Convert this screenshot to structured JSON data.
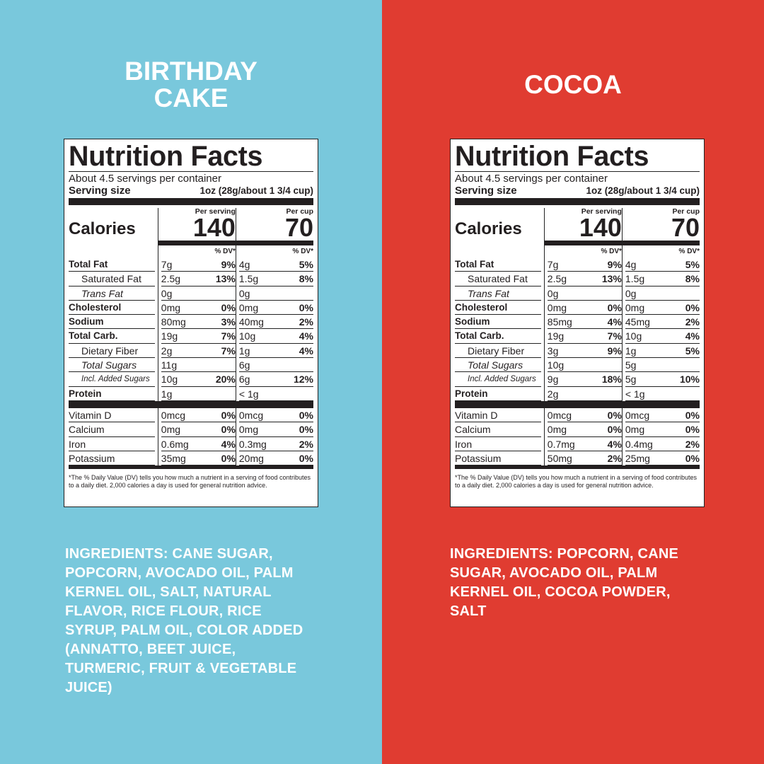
{
  "panels": [
    {
      "title": "BIRTHDAY CAKE",
      "label": {
        "title": "Nutrition Facts",
        "servings": "About 4.5 servings per container",
        "serving_size_label": "Serving size",
        "serving_size": "1oz (28g/about 1 3/4 cup)",
        "calories_label": "Calories",
        "columns": [
          {
            "header": "Per serving",
            "calories": "140"
          },
          {
            "header": "Per cup",
            "calories": "70"
          }
        ],
        "dv_header": "% DV*",
        "nutrients": [
          {
            "name": "Total Fat",
            "style": "bold",
            "cells": [
              [
                "7g",
                "9%"
              ],
              [
                "4g",
                "5%"
              ]
            ]
          },
          {
            "name": "Saturated Fat",
            "style": "indent",
            "cells": [
              [
                "2.5g",
                "13%"
              ],
              [
                "1.5g",
                "8%"
              ]
            ]
          },
          {
            "name": "Trans Fat",
            "style": "indent-italic",
            "cells": [
              [
                "0g"
              ],
              [
                "0g"
              ]
            ]
          },
          {
            "name": "Cholesterol",
            "style": "bold",
            "cells": [
              [
                "0mg",
                "0%"
              ],
              [
                "0mg",
                "0%"
              ]
            ]
          },
          {
            "name": "Sodium",
            "style": "bold",
            "cells": [
              [
                "80mg",
                "3%"
              ],
              [
                "40mg",
                "2%"
              ]
            ]
          },
          {
            "name": "Total Carb.",
            "style": "bold",
            "cells": [
              [
                "19g",
                "7%"
              ],
              [
                "10g",
                "4%"
              ]
            ]
          },
          {
            "name": "Dietary Fiber",
            "style": "indent",
            "cells": [
              [
                "2g",
                "7%"
              ],
              [
                "1g",
                "4%"
              ]
            ]
          },
          {
            "name": "Total Sugars",
            "style": "indent-italic",
            "cells": [
              [
                "11g"
              ],
              [
                "6g"
              ]
            ]
          },
          {
            "name": "Incl. Added Sugars",
            "style": "small-italic",
            "cells": [
              [
                "10g",
                "20%"
              ],
              [
                "6g",
                "12%"
              ]
            ]
          },
          {
            "name": "Protein",
            "style": "bold",
            "cells": [
              [
                "1g"
              ],
              [
                "< 1g"
              ]
            ]
          }
        ],
        "vitamins": [
          {
            "name": "Vitamin D",
            "style": "plain",
            "cells": [
              [
                "0mcg",
                "0%"
              ],
              [
                "0mcg",
                "0%"
              ]
            ]
          },
          {
            "name": "Calcium",
            "style": "plain",
            "cells": [
              [
                "0mg",
                "0%"
              ],
              [
                "0mg",
                "0%"
              ]
            ]
          },
          {
            "name": "Iron",
            "style": "plain",
            "cells": [
              [
                "0.6mg",
                "4%"
              ],
              [
                "0.3mg",
                "2%"
              ]
            ]
          },
          {
            "name": "Potassium",
            "style": "plain",
            "cells": [
              [
                "35mg",
                "0%"
              ],
              [
                "20mg",
                "0%"
              ]
            ]
          }
        ],
        "footnote": "*The % Daily Value (DV) tells you how much a nutrient in a serving of food contributes to a daily diet. 2,000 calories a day is used for general nutrition advice."
      },
      "ingredients_label": "INGREDIENTS:",
      "ingredients": "CANE SUGAR, POPCORN, AVOCADO OIL, PALM KERNEL OIL, SALT, NATURAL FLAVOR, RICE FLOUR, RICE SYRUP, PALM OIL, COLOR ADDED (ANNATTO, BEET JUICE, TURMERIC, FRUIT & VEGETABLE JUICE)"
    },
    {
      "title": "COCOA",
      "label": {
        "title": "Nutrition Facts",
        "servings": "About 4.5 servings per container",
        "serving_size_label": "Serving size",
        "serving_size": "1oz (28g/about 1 3/4 cup)",
        "calories_label": "Calories",
        "columns": [
          {
            "header": "Per serving",
            "calories": "140"
          },
          {
            "header": "Per cup",
            "calories": "70"
          }
        ],
        "dv_header": "% DV*",
        "nutrients": [
          {
            "name": "Total Fat",
            "style": "bold",
            "cells": [
              [
                "7g",
                "9%"
              ],
              [
                "4g",
                "5%"
              ]
            ]
          },
          {
            "name": "Saturated Fat",
            "style": "indent",
            "cells": [
              [
                "2.5g",
                "13%"
              ],
              [
                "1.5g",
                "8%"
              ]
            ]
          },
          {
            "name": "Trans Fat",
            "style": "indent-italic",
            "cells": [
              [
                "0g"
              ],
              [
                "0g"
              ]
            ]
          },
          {
            "name": "Cholesterol",
            "style": "bold",
            "cells": [
              [
                "0mg",
                "0%"
              ],
              [
                "0mg",
                "0%"
              ]
            ]
          },
          {
            "name": "Sodium",
            "style": "bold",
            "cells": [
              [
                "85mg",
                "4%"
              ],
              [
                "45mg",
                "2%"
              ]
            ]
          },
          {
            "name": "Total Carb.",
            "style": "bold",
            "cells": [
              [
                "19g",
                "7%"
              ],
              [
                "10g",
                "4%"
              ]
            ]
          },
          {
            "name": "Dietary Fiber",
            "style": "indent",
            "cells": [
              [
                "3g",
                "9%"
              ],
              [
                "1g",
                "5%"
              ]
            ]
          },
          {
            "name": "Total Sugars",
            "style": "indent-italic",
            "cells": [
              [
                "10g"
              ],
              [
                "5g"
              ]
            ]
          },
          {
            "name": "Incl. Added Sugars",
            "style": "small-italic",
            "cells": [
              [
                "9g",
                "18%"
              ],
              [
                "5g",
                "10%"
              ]
            ]
          },
          {
            "name": "Protein",
            "style": "bold",
            "cells": [
              [
                "2g"
              ],
              [
                "< 1g"
              ]
            ]
          }
        ],
        "vitamins": [
          {
            "name": "Vitamin D",
            "style": "plain",
            "cells": [
              [
                "0mcg",
                "0%"
              ],
              [
                "0mcg",
                "0%"
              ]
            ]
          },
          {
            "name": "Calcium",
            "style": "plain",
            "cells": [
              [
                "0mg",
                "0%"
              ],
              [
                "0mg",
                "0%"
              ]
            ]
          },
          {
            "name": "Iron",
            "style": "plain",
            "cells": [
              [
                "0.7mg",
                "4%"
              ],
              [
                "0.4mg",
                "2%"
              ]
            ]
          },
          {
            "name": "Potassium",
            "style": "plain",
            "cells": [
              [
                "50mg",
                "2%"
              ],
              [
                "25mg",
                "0%"
              ]
            ]
          }
        ],
        "footnote": "*The % Daily Value (DV) tells you how much a nutrient in a serving of food contributes to a daily diet. 2,000 calories a day is used for general nutrition advice."
      },
      "ingredients_label": "INGREDIENTS:",
      "ingredients": "POPCORN, CANE SUGAR, AVOCADO OIL, PALM KERNEL OIL, COCOA POWDER, SALT"
    }
  ]
}
